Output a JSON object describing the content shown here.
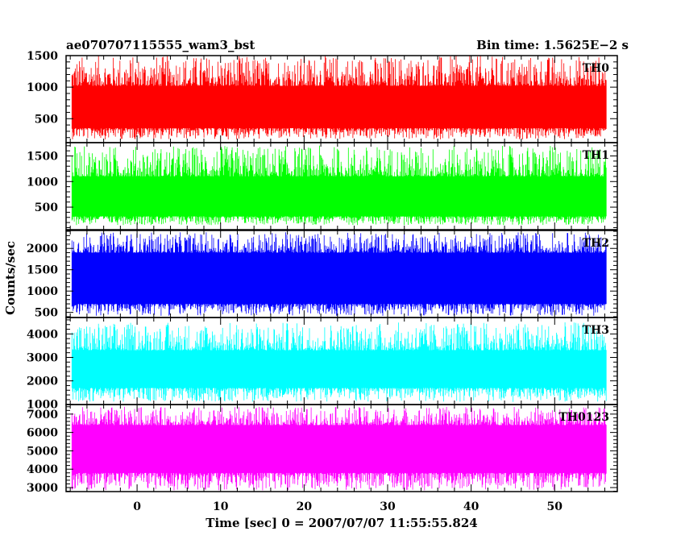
{
  "header": {
    "title": "ae070707115555_wam3_bst",
    "bin_time": "Bin time: 1.5625E−2 s"
  },
  "chart_data": {
    "type": "line",
    "xlabel": "Time [sec] 0 = 2007/07/07 11:55:55.824",
    "ylabel": "Counts/sec",
    "xlim": [
      -8.5,
      57.5
    ],
    "data_range": [
      -7.8,
      56.2
    ],
    "xticks": [
      0,
      10,
      20,
      30,
      40,
      50
    ],
    "grid": false,
    "panels": [
      {
        "name": "TH0",
        "color": "#ff0000",
        "ylim": [
          120,
          1500
        ],
        "yticks": [
          500,
          1000,
          1500
        ],
        "band_low": 350,
        "band_high": 1020,
        "floor": 170,
        "peak": 1500
      },
      {
        "name": "TH1",
        "color": "#00ff00",
        "ylim": [
          60,
          1760
        ],
        "yticks": [
          500,
          1000,
          1500
        ],
        "band_low": 320,
        "band_high": 1100,
        "floor": 150,
        "peak": 1700
      },
      {
        "name": "TH2",
        "color": "#0000ff",
        "ylim": [
          380,
          2420
        ],
        "yticks": [
          500,
          1000,
          1500,
          2000
        ],
        "band_low": 700,
        "band_high": 1900,
        "floor": 420,
        "peak": 2380
      },
      {
        "name": "TH3",
        "color": "#00ffff",
        "ylim": [
          990,
          4700
        ],
        "yticks": [
          1000,
          2000,
          3000,
          4000
        ],
        "band_low": 1700,
        "band_high": 3300,
        "floor": 1100,
        "peak": 4500
      },
      {
        "name": "TH0123",
        "color": "#ff00ff",
        "ylim": [
          2780,
          7520
        ],
        "yticks": [
          3000,
          4000,
          5000,
          6000,
          7000
        ],
        "band_low": 3800,
        "band_high": 6400,
        "floor": 2850,
        "peak": 7400
      }
    ]
  }
}
